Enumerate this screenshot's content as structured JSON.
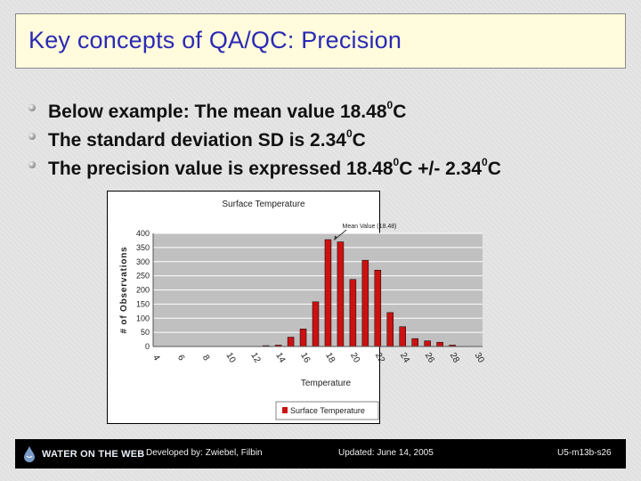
{
  "slide": {
    "title": "Key concepts of QA/QC:  Precision",
    "bullets": [
      {
        "text": "Below example: The mean value 18.48",
        "sup": "0",
        "suffix": "C"
      },
      {
        "text": "The standard deviation SD is 2.34",
        "sup": "0",
        "suffix": "C"
      },
      {
        "text": "The precision value is expressed 18.48",
        "sup": "0",
        "suffix": "C +/- 2.34",
        "sup2": "0",
        "suffix2": "C"
      }
    ]
  },
  "chart_data": {
    "type": "bar",
    "title": "Surface Temperature",
    "xlabel": "Temperature",
    "ylabel": "# of Observations",
    "annotation": "Mean Value (18.48)",
    "annotation_x": 18.48,
    "categories": [
      "4",
      "6",
      "8",
      "10",
      "12",
      "14",
      "16",
      "18",
      "20",
      "22",
      "24",
      "26",
      "28",
      "30"
    ],
    "tick_labels": [
      "4",
      "6",
      "8",
      "10",
      "12",
      "14",
      "16",
      "18",
      "20",
      "22",
      "24",
      "26",
      "28",
      "30"
    ],
    "x": [
      4,
      5,
      6,
      7,
      8,
      9,
      10,
      11,
      12,
      13,
      14,
      15,
      16,
      17,
      18,
      19,
      20,
      21,
      22,
      23,
      24,
      25,
      26,
      27,
      28,
      29,
      30
    ],
    "values": [
      0,
      0,
      0,
      0,
      0,
      0,
      0,
      0,
      0,
      3,
      5,
      33,
      62,
      158,
      378,
      370,
      237,
      305,
      270,
      120,
      70,
      28,
      20,
      15,
      5,
      0,
      0
    ],
    "series": [
      {
        "name": "Surface Temperature",
        "color": "#cc1111"
      }
    ],
    "ylim": [
      0,
      400
    ],
    "yticks": [
      0,
      50,
      100,
      150,
      200,
      250,
      300,
      350,
      400
    ],
    "grid": true,
    "legend": "bottom",
    "plot_bg": "#c0c0c0",
    "bar_color": "#cc1111"
  },
  "footer": {
    "logo": "WATER ON THE WEB",
    "developed": "Developed by:  Zwiebel, Filbin",
    "updated": "Updated:  June 14, 2005",
    "code": "U5-m13b-s26"
  }
}
